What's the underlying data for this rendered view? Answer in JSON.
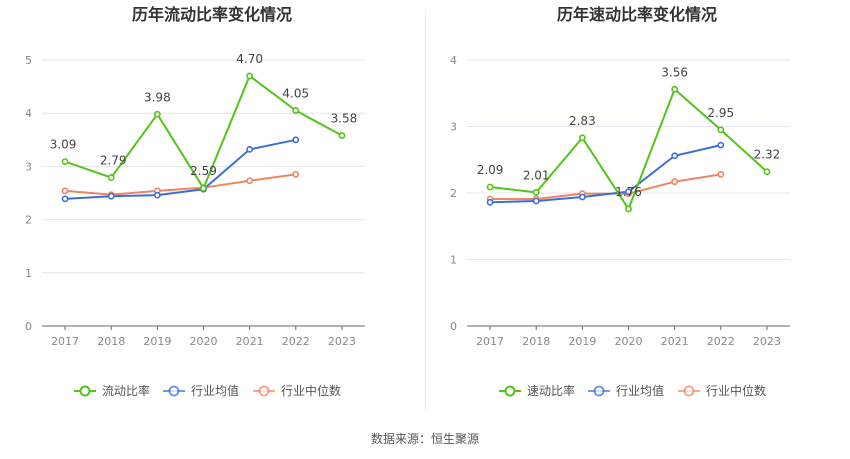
{
  "colors": {
    "ratio": "#52c41a",
    "avg": "#3b6fd8",
    "median": "#f0845f",
    "grid": "#e3e6ee",
    "axis": "#666666",
    "tick_text": "#888888",
    "label_text": "#444444",
    "title_text": "#333333"
  },
  "source_text": "数据来源：恒生聚源",
  "chart_data": [
    {
      "type": "line",
      "title": "历年流动比率变化情况",
      "categories": [
        "2017",
        "2018",
        "2019",
        "2020",
        "2021",
        "2022",
        "2023"
      ],
      "ylim": [
        0,
        5
      ],
      "yticks": [
        0,
        1,
        2,
        3,
        4,
        5
      ],
      "grid": true,
      "legend_position": "bottom",
      "series": [
        {
          "name": "流动比率",
          "key": "ratio",
          "values": [
            3.09,
            2.79,
            3.98,
            2.59,
            4.7,
            4.05,
            3.58
          ],
          "labels": [
            "3.09",
            "2.79",
            "3.98",
            "2.59",
            "4.70",
            "4.05",
            "3.58"
          ]
        },
        {
          "name": "行业均值",
          "key": "avg",
          "values": [
            2.39,
            2.44,
            2.46,
            2.57,
            3.32,
            3.5,
            null
          ]
        },
        {
          "name": "行业中位数",
          "key": "median",
          "values": [
            2.54,
            2.47,
            2.54,
            2.6,
            2.73,
            2.85,
            null
          ]
        }
      ]
    },
    {
      "type": "line",
      "title": "历年速动比率变化情况",
      "categories": [
        "2017",
        "2018",
        "2019",
        "2020",
        "2021",
        "2022",
        "2023"
      ],
      "ylim": [
        0,
        4
      ],
      "yticks": [
        0,
        1,
        2,
        3,
        4
      ],
      "grid": true,
      "legend_position": "bottom",
      "series": [
        {
          "name": "速动比率",
          "key": "ratio",
          "values": [
            2.09,
            2.01,
            2.83,
            1.76,
            3.56,
            2.95,
            2.32
          ],
          "labels": [
            "2.09",
            "2.01",
            "2.83",
            "1.76",
            "3.56",
            "2.95",
            "2.32"
          ]
        },
        {
          "name": "行业均值",
          "key": "avg",
          "values": [
            1.86,
            1.88,
            1.94,
            2.02,
            2.56,
            2.72,
            null
          ]
        },
        {
          "name": "行业中位数",
          "key": "median",
          "values": [
            1.91,
            1.91,
            1.99,
            1.99,
            2.17,
            2.28,
            null
          ]
        }
      ]
    }
  ]
}
